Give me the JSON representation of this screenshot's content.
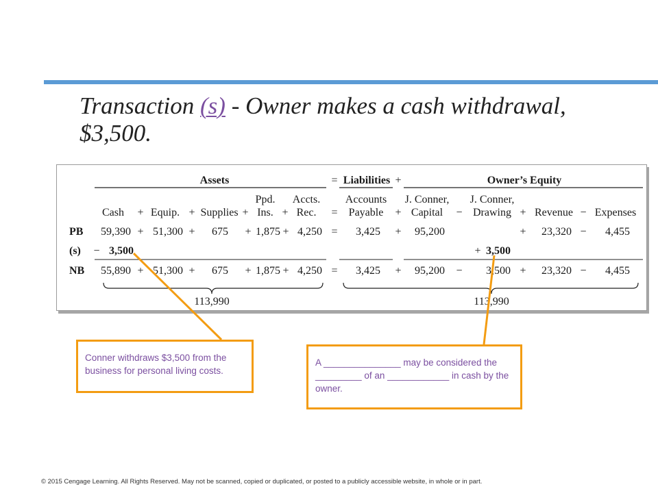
{
  "slide": {
    "title_pre": "Transaction ",
    "title_tag": "(s)",
    "title_post": " - Owner makes a cash withdrawal, $3,500."
  },
  "table": {
    "group_assets": "Assets",
    "group_liabilities": "Liabilities",
    "group_equity": "Owner’s Equity",
    "equals": "=",
    "plus": "+",
    "minus": "−",
    "headers": {
      "cash": "Cash",
      "equip": "Equip.",
      "supplies": "Supplies",
      "ppd_1": "Ppd.",
      "ppd_2": "Ins.",
      "accts_1": "Accts.",
      "accts_2": "Rec.",
      "ap_1": "Accounts",
      "ap_2": "Payable",
      "cap_1": "J. Conner,",
      "cap_2": "Capital",
      "draw_1": "J. Conner,",
      "draw_2": "Drawing",
      "rev": "Revenue",
      "exp": "Expenses"
    },
    "pb": {
      "label": "PB",
      "cash": "59,390",
      "equip": "51,300",
      "supplies": "675",
      "ppd": "1,875",
      "accts": "4,250",
      "ap": "3,425",
      "capital": "95,200",
      "revenue": "23,320",
      "expenses": "4,455"
    },
    "s": {
      "label": "(s)",
      "cash": "3,500",
      "drawing": "3,500"
    },
    "nb": {
      "label": "NB",
      "cash": "55,890",
      "equip": "51,300",
      "supplies": "675",
      "ppd": "1,875",
      "accts": "4,250",
      "ap": "3,425",
      "capital": "95,200",
      "drawing": "3,500",
      "revenue": "23,320",
      "expenses": "4,455"
    },
    "total_assets": "113,990",
    "total_liab_equity": "113,990"
  },
  "callouts": {
    "left": "Conner withdraws $3,500 from the business for personal living costs.",
    "right": "A _______________ may be considered the _________ of an ____________ in cash by the owner."
  },
  "footer": "© 2015 Cengage Learning. All Rights Reserved. May not be scanned, copied or duplicated, or posted to a publicly accessible website, in whole or in part.",
  "colors": {
    "accent_line": "#5b9bd5",
    "callout_border": "#f39c12",
    "callout_text": "#7b4fa0",
    "title_tag": "#7b4fa0"
  }
}
